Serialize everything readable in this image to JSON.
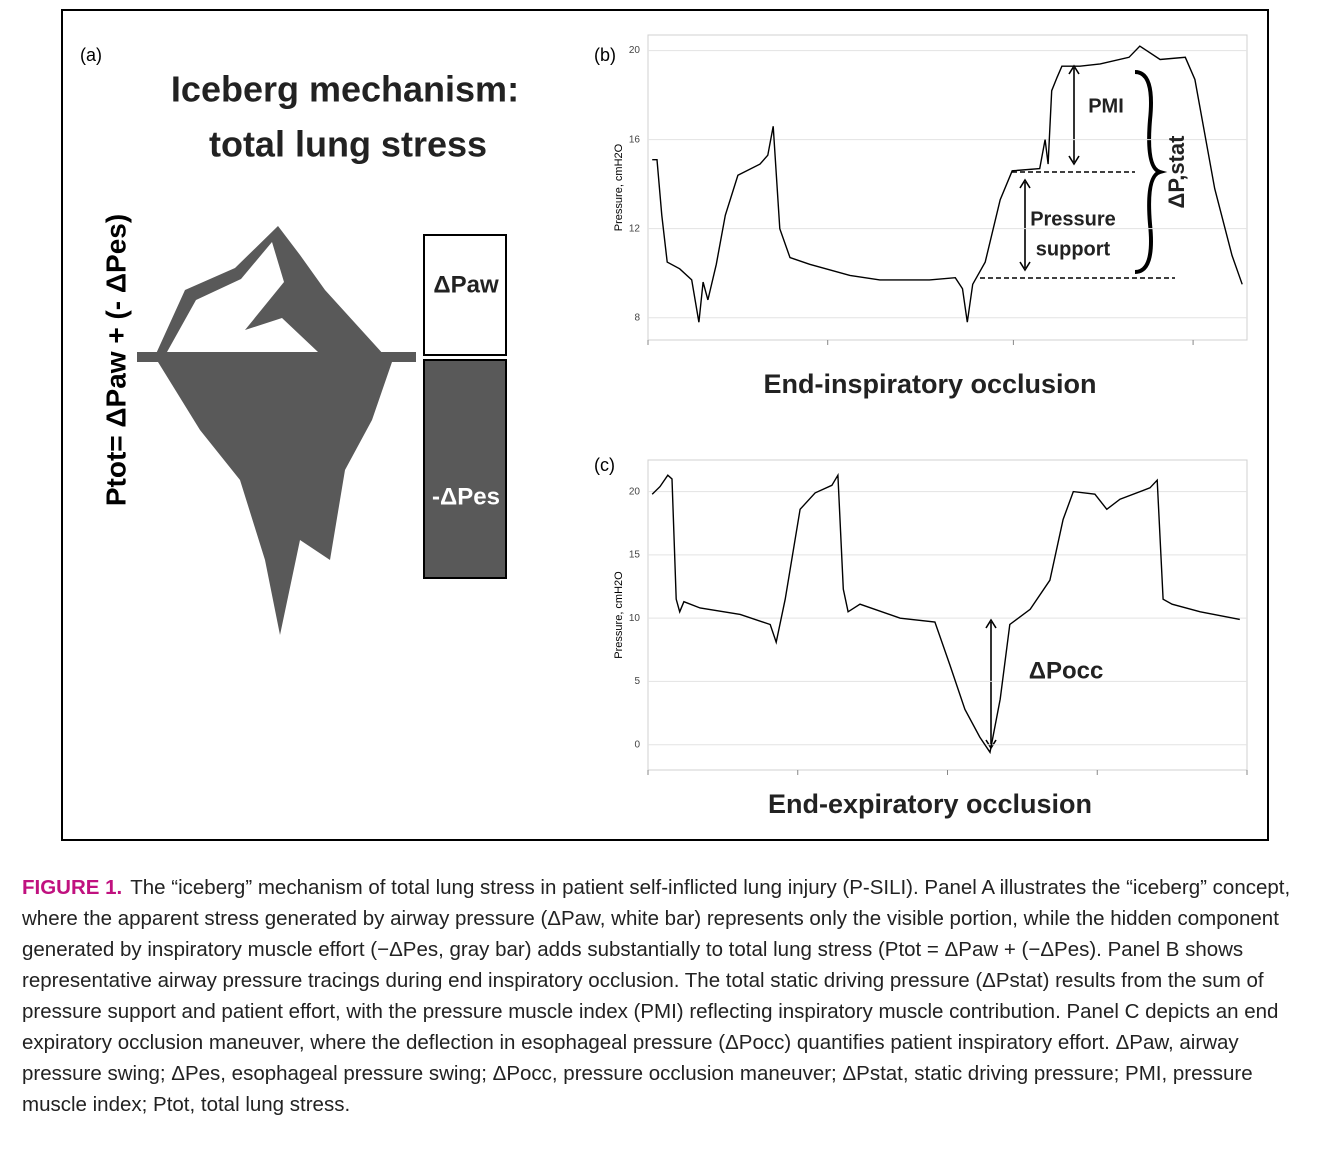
{
  "panel_a": {
    "label": "(a)",
    "title_line1": "Iceberg mechanism:",
    "title_line2": "total lung stress",
    "equation": "Ptot= ΔPaw + (- ΔPes)",
    "visible_bar": "ΔPaw",
    "hidden_bar": "-ΔPes"
  },
  "chart_data": [
    {
      "type": "line",
      "label": "(b)",
      "title": "End-inspiratory occlusion",
      "ylabel": "Pressure, cmH2O",
      "xlim": [
        0,
        100
      ],
      "xticks": [
        0,
        30,
        61,
        91
      ],
      "ylim": [
        7,
        20.7
      ],
      "yticks": [
        8,
        12,
        16,
        20
      ],
      "grid": true,
      "annotations": [
        "PMI",
        "Pressure",
        "support",
        "ΔP,stat"
      ],
      "series": [
        {
          "color": "#000000",
          "x": [
            0.7,
            1.5,
            2.3,
            3.2,
            5.3,
            7.3,
            8.5,
            9.2,
            10,
            11.4,
            12.9,
            15,
            18.7,
            20,
            20.9,
            22,
            23.7,
            27,
            33.7,
            38.7,
            47,
            51.3,
            52.5,
            53.3,
            54.2,
            56.3,
            58.8,
            60.8,
            65.4,
            66.3,
            66.8,
            67.4,
            68.3,
            69.1,
            72.1,
            75.5,
            80.3,
            82.1,
            85.5,
            89.7,
            91.3,
            94.6,
            97.5,
            99.2
          ],
          "values": [
            15.1,
            15.1,
            12.6,
            10.5,
            10.2,
            9.7,
            7.8,
            9.6,
            8.8,
            10.4,
            12.6,
            14.4,
            14.9,
            15.3,
            16.6,
            12,
            10.7,
            10.4,
            9.9,
            9.7,
            9.7,
            9.8,
            9.3,
            7.8,
            9.5,
            10.5,
            13.3,
            14.6,
            14.7,
            16,
            14.9,
            18.2,
            18.8,
            19.3,
            19.3,
            19.4,
            19.7,
            20.2,
            19.6,
            19.7,
            18.7,
            13.8,
            10.8,
            9.5
          ]
        }
      ]
    },
    {
      "type": "line",
      "label": "(c)",
      "title": "End-expiratory occlusion",
      "ylabel": "Pressure, cmH2O",
      "xlim": [
        0,
        100
      ],
      "xticks": [
        0,
        25,
        50,
        75,
        100
      ],
      "ylim": [
        -2,
        22.5
      ],
      "yticks": [
        0,
        5,
        10,
        15,
        20
      ],
      "grid": true,
      "annotations": [
        "ΔPocc"
      ],
      "series": [
        {
          "color": "#000000",
          "x": [
            0.7,
            2,
            3.3,
            4,
            4.7,
            5.3,
            6,
            8.7,
            15.4,
            20.4,
            21.4,
            22.9,
            25.4,
            27.9,
            30.7,
            31.7,
            32.6,
            33.4,
            35.4,
            42.1,
            47.9,
            50.4,
            52.9,
            55.4,
            57.1,
            58.8,
            60.4,
            63.8,
            67.1,
            69.3,
            71,
            74.6,
            76.6,
            78.8,
            83.8,
            85,
            86,
            87.5,
            92.2,
            98.8
          ],
          "values": [
            19.8,
            20.4,
            21.3,
            21,
            11.5,
            10.5,
            11.3,
            10.8,
            10.3,
            9.5,
            8.1,
            11.5,
            18.6,
            19.9,
            20.5,
            21.3,
            12.3,
            10.5,
            11.1,
            10,
            9.7,
            6.3,
            2.8,
            0.6,
            -0.6,
            3.6,
            9.5,
            10.7,
            13,
            17.8,
            20,
            19.8,
            18.6,
            19.4,
            20.3,
            20.9,
            11.5,
            11.1,
            10.5,
            9.9
          ]
        }
      ]
    }
  ],
  "caption": {
    "label": "FIGURE 1.",
    "text": "The “iceberg” mechanism of total lung stress in patient self-inflicted lung injury (P-SILI). Panel A illustrates the “iceberg” concept, where the apparent stress generated by airway pressure (ΔPaw, white bar) represents only the visible portion, while the hidden component generated by inspiratory muscle effort (−ΔPes, gray bar) adds substantially to total lung stress (Ptot = ΔPaw + (−ΔPes). Panel B shows representative airway pressure tracings during end inspiratory occlusion. The total static driving pressure (ΔPstat) results from the sum of pressure support and patient effort, with the pressure muscle index (PMI) reflecting inspiratory muscle contribution. Panel C depicts an end expiratory occlusion maneuver, where the deflection in esophageal pressure (ΔPocc) quantifies patient inspiratory effort. ΔPaw, airway pressure swing; ΔPes, esophageal pressure swing; ΔPocc, pressure occlusion maneuver; ΔPstat, static driving pressure; PMI, pressure muscle index; Ptot, total lung stress."
  }
}
